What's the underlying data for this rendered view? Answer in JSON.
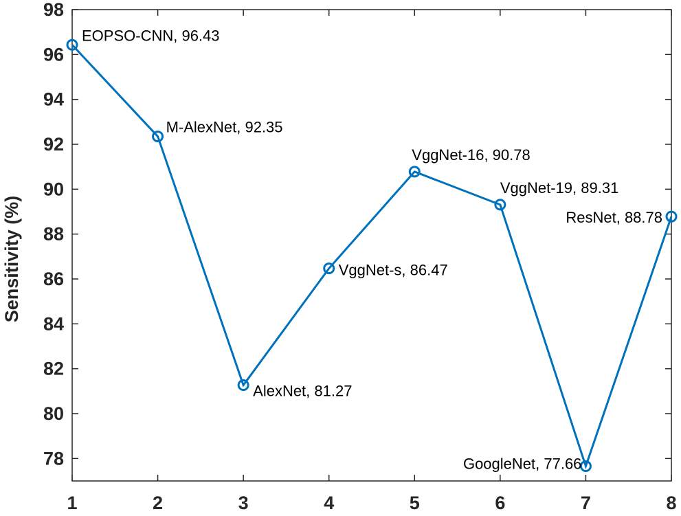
{
  "chart_data": {
    "type": "line",
    "title": "",
    "xlabel": "",
    "ylabel": "Sensitivity (%)",
    "xlim": [
      1,
      8
    ],
    "ylim": [
      77,
      98
    ],
    "x_ticks": [
      1,
      2,
      3,
      4,
      5,
      6,
      7,
      8
    ],
    "y_ticks": [
      78,
      80,
      82,
      84,
      86,
      88,
      90,
      92,
      94,
      96,
      98
    ],
    "grid": false,
    "legend": "none",
    "series": [
      {
        "color": "#0072BD",
        "marker": "circle",
        "points": [
          {
            "x": 1,
            "y": 96.43,
            "label": "EOPSO-CNN, 96.43"
          },
          {
            "x": 2,
            "y": 92.35,
            "label": "M-AlexNet, 92.35"
          },
          {
            "x": 3,
            "y": 81.27,
            "label": "AlexNet, 81.27"
          },
          {
            "x": 4,
            "y": 86.47,
            "label": "VggNet-s, 86.47"
          },
          {
            "x": 5,
            "y": 90.78,
            "label": "VggNet-16, 90.78"
          },
          {
            "x": 6,
            "y": 89.31,
            "label": "VggNet-19, 89.31"
          },
          {
            "x": 7,
            "y": 77.66,
            "label": "GoogleNet, 77.66"
          },
          {
            "x": 8,
            "y": 88.78,
            "label": "ResNet, 88.78"
          }
        ]
      }
    ]
  }
}
